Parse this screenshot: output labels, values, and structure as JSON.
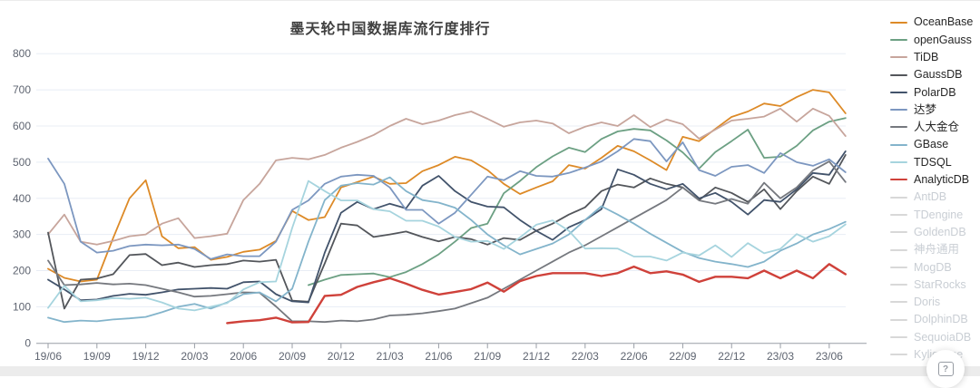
{
  "page": {
    "background": "#ffffff",
    "bottom_strip_color": "#ececec"
  },
  "ui": {
    "help_button": {
      "glyph": "?"
    }
  },
  "chart_data": {
    "type": "line",
    "title": "墨天轮中国数据库流行度排行",
    "legend_position": "right",
    "grid": true,
    "ylim": [
      0,
      800
    ],
    "y_ticks": [
      0,
      100,
      200,
      300,
      400,
      500,
      600,
      700,
      800
    ],
    "x_tick_labels": [
      "19/06",
      "19/09",
      "19/12",
      "20/03",
      "20/06",
      "20/09",
      "20/12",
      "21/03",
      "21/06",
      "21/09",
      "21/12",
      "22/03",
      "22/06",
      "22/09",
      "22/12",
      "23/03",
      "23/06"
    ],
    "x": [
      "19/06",
      "19/07",
      "19/08",
      "19/09",
      "19/10",
      "19/11",
      "19/12",
      "20/01",
      "20/02",
      "20/03",
      "20/04",
      "20/05",
      "20/06",
      "20/07",
      "20/08",
      "20/09",
      "20/10",
      "20/11",
      "20/12",
      "21/01",
      "21/02",
      "21/03",
      "21/04",
      "21/05",
      "21/06",
      "21/07",
      "21/08",
      "21/09",
      "21/10",
      "21/11",
      "21/12",
      "22/01",
      "22/02",
      "22/03",
      "22/04",
      "22/05",
      "22/06",
      "22/07",
      "22/08",
      "22/09",
      "22/10",
      "22/11",
      "22/12",
      "23/01",
      "23/02",
      "23/03",
      "23/04",
      "23/05",
      "23/06",
      "23/07"
    ],
    "series": [
      {
        "name": "OceanBase",
        "color": "#DD8A27",
        "active": true,
        "values": [
          205,
          180,
          170,
          175,
          290,
          400,
          450,
          295,
          262,
          265,
          230,
          238,
          252,
          258,
          282,
          365,
          340,
          348,
          430,
          445,
          460,
          440,
          442,
          475,
          492,
          515,
          505,
          478,
          440,
          412,
          430,
          447,
          492,
          482,
          512,
          545,
          530,
          505,
          478,
          570,
          558,
          592,
          625,
          640,
          662,
          655,
          680,
          700,
          693,
          635
        ]
      },
      {
        "name": "openGauss",
        "color": "#6CA083",
        "active": true,
        "values": [
          null,
          null,
          null,
          null,
          null,
          null,
          null,
          null,
          null,
          null,
          null,
          null,
          null,
          null,
          null,
          null,
          160,
          175,
          188,
          190,
          192,
          182,
          196,
          218,
          245,
          280,
          318,
          330,
          414,
          448,
          486,
          516,
          540,
          528,
          564,
          585,
          592,
          588,
          560,
          527,
          482,
          528,
          558,
          590,
          512,
          515,
          545,
          588,
          612,
          622
        ]
      },
      {
        "name": "TiDB",
        "color": "#C7A59C",
        "active": true,
        "values": [
          300,
          355,
          280,
          272,
          282,
          295,
          300,
          330,
          345,
          290,
          295,
          302,
          395,
          440,
          505,
          512,
          508,
          520,
          540,
          556,
          575,
          600,
          620,
          605,
          615,
          630,
          640,
          620,
          598,
          610,
          615,
          607,
          580,
          598,
          610,
          600,
          630,
          597,
          618,
          605,
          565,
          590,
          615,
          620,
          626,
          648,
          612,
          648,
          628,
          572
        ]
      },
      {
        "name": "GaussDB",
        "color": "#53565B",
        "active": true,
        "values": [
          305,
          95,
          175,
          178,
          190,
          243,
          246,
          215,
          222,
          210,
          215,
          218,
          228,
          225,
          230,
          117,
          114,
          220,
          330,
          325,
          293,
          300,
          308,
          293,
          281,
          293,
          287,
          272,
          290,
          285,
          310,
          330,
          355,
          375,
          420,
          438,
          430,
          455,
          440,
          430,
          395,
          430,
          415,
          390,
          425,
          370,
          420,
          460,
          440,
          520
        ]
      },
      {
        "name": "PolarDB",
        "color": "#42536B",
        "active": true,
        "values": [
          175,
          148,
          118,
          120,
          130,
          136,
          133,
          140,
          148,
          150,
          152,
          150,
          168,
          170,
          135,
          115,
          112,
          250,
          360,
          390,
          370,
          385,
          372,
          435,
          462,
          420,
          390,
          377,
          375,
          340,
          310,
          285,
          320,
          340,
          370,
          480,
          465,
          440,
          425,
          440,
          400,
          415,
          390,
          355,
          395,
          390,
          425,
          470,
          465,
          530
        ]
      },
      {
        "name": "达梦",
        "color": "#7C97C0",
        "active": true,
        "values": [
          510,
          440,
          280,
          250,
          255,
          268,
          272,
          270,
          272,
          260,
          232,
          245,
          240,
          240,
          280,
          368,
          394,
          440,
          460,
          465,
          462,
          430,
          368,
          368,
          330,
          360,
          410,
          460,
          450,
          475,
          462,
          460,
          470,
          485,
          502,
          530,
          564,
          558,
          502,
          555,
          478,
          462,
          487,
          492,
          470,
          525,
          500,
          490,
          508,
          472
        ]
      },
      {
        "name": "人大金仓",
        "color": "#75787E",
        "active": true,
        "values": [
          228,
          160,
          162,
          166,
          162,
          164,
          160,
          150,
          140,
          128,
          130,
          135,
          140,
          139,
          101,
          60,
          60,
          58,
          62,
          60,
          65,
          76,
          78,
          82,
          88,
          95,
          110,
          125,
          150,
          175,
          200,
          225,
          250,
          270,
          295,
          320,
          345,
          370,
          395,
          430,
          394,
          385,
          398,
          385,
          443,
          400,
          430,
          477,
          502,
          445
        ]
      },
      {
        "name": "GBase",
        "color": "#83B4CB",
        "active": true,
        "values": [
          70,
          58,
          62,
          60,
          65,
          68,
          72,
          85,
          100,
          108,
          95,
          112,
          135,
          140,
          115,
          150,
          280,
          395,
          435,
          442,
          438,
          458,
          420,
          395,
          388,
          374,
          340,
          300,
          270,
          245,
          260,
          275,
          300,
          340,
          378,
          355,
          330,
          302,
          277,
          252,
          235,
          225,
          218,
          210,
          225,
          255,
          275,
          300,
          315,
          335
        ]
      },
      {
        "name": "TDSQL",
        "color": "#A6D4DE",
        "active": true,
        "values": [
          97,
          158,
          115,
          118,
          124,
          122,
          125,
          112,
          95,
          90,
          100,
          110,
          148,
          168,
          170,
          318,
          448,
          420,
          394,
          394,
          370,
          364,
          338,
          338,
          322,
          293,
          280,
          282,
          260,
          292,
          327,
          339,
          310,
          261,
          262,
          261,
          239,
          239,
          228,
          250,
          242,
          270,
          238,
          276,
          248,
          260,
          301,
          280,
          295,
          328
        ]
      },
      {
        "name": "AnalyticDB",
        "color": "#CF413A",
        "active": true,
        "values": [
          null,
          null,
          null,
          null,
          null,
          null,
          null,
          null,
          null,
          null,
          null,
          55,
          60,
          63,
          70,
          57,
          58,
          130,
          133,
          155,
          168,
          179,
          164,
          147,
          134,
          141,
          149,
          167,
          142,
          171,
          185,
          193,
          193,
          193,
          185,
          193,
          211,
          193,
          198,
          189,
          169,
          183,
          183,
          179,
          200,
          179,
          200,
          179,
          218,
          190
        ]
      },
      {
        "name": "AntDB",
        "color": "#D8D8D8",
        "active": false,
        "values": null
      },
      {
        "name": "TDengine",
        "color": "#D8D8D8",
        "active": false,
        "values": null
      },
      {
        "name": "GoldenDB",
        "color": "#D8D8D8",
        "active": false,
        "values": null
      },
      {
        "name": "神舟通用",
        "color": "#D8D8D8",
        "active": false,
        "values": null
      },
      {
        "name": "MogDB",
        "color": "#D8D8D8",
        "active": false,
        "values": null
      },
      {
        "name": "StarRocks",
        "color": "#D8D8D8",
        "active": false,
        "values": null
      },
      {
        "name": "Doris",
        "color": "#D8D8D8",
        "active": false,
        "values": null
      },
      {
        "name": "DolphinDB",
        "color": "#D8D8D8",
        "active": false,
        "values": null
      },
      {
        "name": "SequoiaDB",
        "color": "#D8D8D8",
        "active": false,
        "values": null
      },
      {
        "name": "Kyligence",
        "color": "#D8D8D8",
        "active": false,
        "values": null
      }
    ],
    "style": {
      "grid_color": "#E8EDF5",
      "axis_color": "#999EA6",
      "tick_label_color": "#5E6470",
      "line_width": 1.8,
      "highlight_line_width": 2.4
    }
  }
}
